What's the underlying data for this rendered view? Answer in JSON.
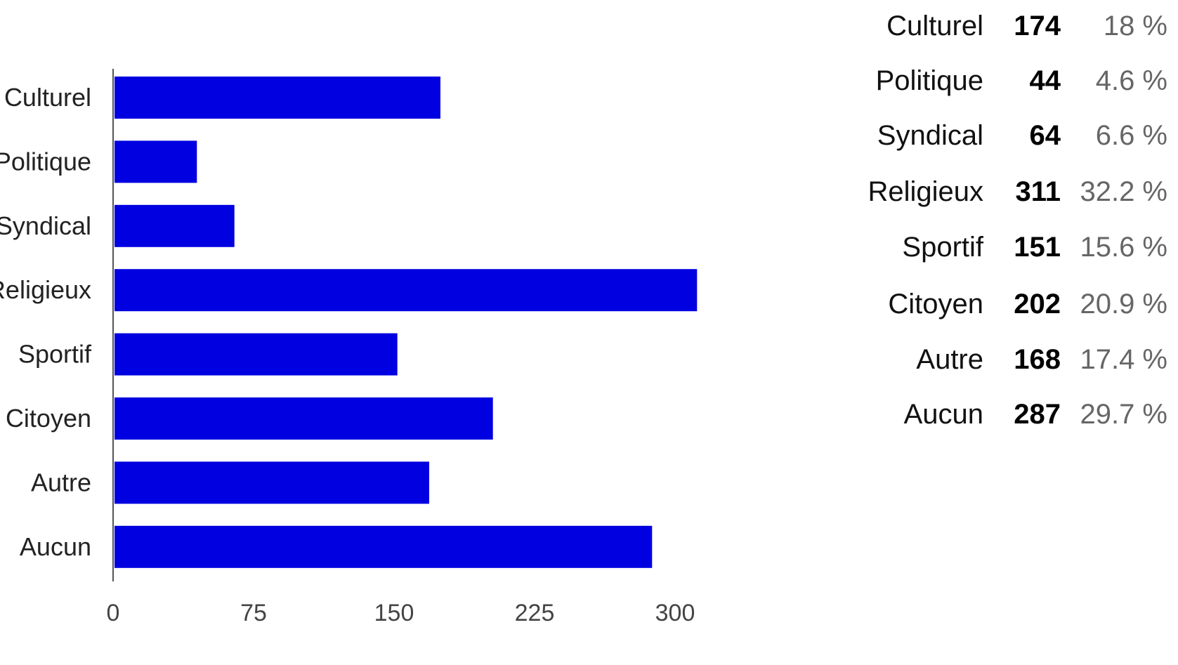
{
  "colors": {
    "bar": "#0000e0",
    "axis": "#555555"
  },
  "chart_data": {
    "type": "bar",
    "orientation": "horizontal",
    "categories": [
      "Culturel",
      "Politique",
      "Syndical",
      "Religieux",
      "Sportif",
      "Citoyen",
      "Autre",
      "Aucun"
    ],
    "values": [
      174,
      44,
      64,
      311,
      151,
      202,
      168,
      287
    ],
    "xlim": [
      0,
      300
    ],
    "xticks": [
      0,
      75,
      150,
      225,
      300
    ],
    "grid": false,
    "legend": "none"
  },
  "summary": {
    "rows": [
      {
        "name": "Culturel",
        "count": "174",
        "pct": "18 %"
      },
      {
        "name": "Politique",
        "count": "44",
        "pct": "4.6 %"
      },
      {
        "name": "Syndical",
        "count": "64",
        "pct": "6.6 %"
      },
      {
        "name": "Religieux",
        "count": "311",
        "pct": "32.2 %"
      },
      {
        "name": "Sportif",
        "count": "151",
        "pct": "15.6 %"
      },
      {
        "name": "Citoyen",
        "count": "202",
        "pct": "20.9 %"
      },
      {
        "name": "Autre",
        "count": "168",
        "pct": "17.4 %"
      },
      {
        "name": "Aucun",
        "count": "287",
        "pct": "29.7 %"
      }
    ]
  }
}
